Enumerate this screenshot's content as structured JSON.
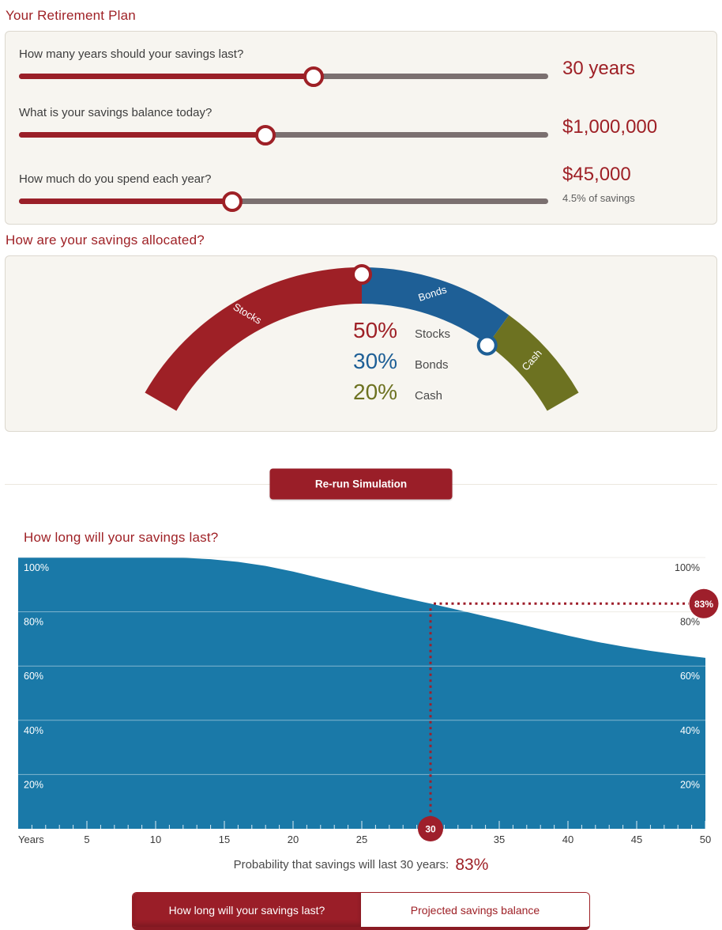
{
  "page_title": "Your Retirement Plan",
  "colors": {
    "brand_red": "#9e2026",
    "button_red": "#9a1e28",
    "bonds_blue": "#1e5f96",
    "cash_olive": "#6d7221",
    "chart_blue": "#1a79a8",
    "track_gray": "#7b7070"
  },
  "plan": {
    "sliders": [
      {
        "question": "How many years should your savings last?",
        "value": "30 years",
        "fraction": 0.557
      },
      {
        "question": "What is your savings balance today?",
        "value": "$1,000,000",
        "fraction": 0.466
      },
      {
        "question": "How much do you spend each year?",
        "value": "$45,000",
        "caption": "4.5% of savings",
        "fraction": 0.403
      }
    ]
  },
  "allocation": {
    "title": "How are your savings allocated?",
    "segments": [
      {
        "label": "Stocks",
        "percent": 50,
        "color": "#9e2026"
      },
      {
        "label": "Bonds",
        "percent": 30,
        "color": "#1e5f96"
      },
      {
        "label": "Cash",
        "percent": 20,
        "color": "#6d7221"
      }
    ]
  },
  "simulation": {
    "rerun_label": "Re-run Simulation"
  },
  "chart_data": {
    "type": "area",
    "title": "How long will your savings last?",
    "xlabel": "Years",
    "xlim": [
      0,
      50
    ],
    "ylim": [
      0,
      100
    ],
    "x_major_ticks": [
      5,
      10,
      15,
      20,
      25,
      30,
      35,
      40,
      45,
      50
    ],
    "x_minor_tick_interval": 1,
    "y_gridlines": [
      20,
      40,
      60,
      80,
      100
    ],
    "y_tick_suffix": "%",
    "grid": true,
    "area_color": "#1a79a8",
    "series": [
      {
        "name": "Probability savings will last",
        "x": [
          0,
          5,
          10,
          12,
          14,
          16,
          18,
          20,
          22,
          24,
          26,
          28,
          30,
          32,
          34,
          36,
          38,
          40,
          42,
          44,
          46,
          48,
          50
        ],
        "y": [
          100,
          100,
          100,
          99.9,
          99.4,
          98.4,
          96.9,
          94.8,
          92.4,
          90,
          87.5,
          85.2,
          83,
          80.7,
          78.3,
          76,
          73.6,
          71.2,
          69,
          67.2,
          65.6,
          64.2,
          63
        ]
      }
    ],
    "marker": {
      "x": 30,
      "y": 83,
      "x_badge": "30",
      "y_badge": "83%"
    }
  },
  "probability_note": {
    "text": "Probability that savings will last 30 years:",
    "value": "83%"
  },
  "tabs": [
    {
      "label": "How long will your savings last?",
      "active": true
    },
    {
      "label": "Projected savings balance",
      "active": false
    }
  ]
}
